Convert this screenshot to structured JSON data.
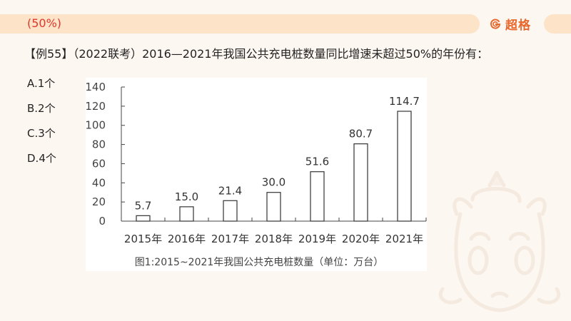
{
  "header": {
    "section_label": "(50%)",
    "brand": "超格",
    "brand_color": "#e8672c",
    "bar_color": "#fde3c8",
    "label_color": "#e0382c"
  },
  "question": {
    "text": "【例55】（2022联考）2016—2021年我国公共充电桩数量同比增速未超过50%的年份有：",
    "options": [
      {
        "label": "A.1个"
      },
      {
        "label": "B.2个"
      },
      {
        "label": "C.3个"
      },
      {
        "label": "D.4个"
      }
    ]
  },
  "chart_data": {
    "type": "bar",
    "title": "图1:2015~2021年我国公共充电桩数量（单位：万台）",
    "categories": [
      "2015年",
      "2016年",
      "2017年",
      "2018年",
      "2019年",
      "2020年",
      "2021年"
    ],
    "values": [
      5.7,
      15.0,
      21.4,
      30.0,
      51.6,
      80.7,
      114.7
    ],
    "value_labels": [
      "5.7",
      "15.0",
      "21.4",
      "30.0",
      "51.6",
      "80.7",
      "114.7"
    ],
    "xlabel": "",
    "ylabel": "",
    "ylim": [
      0,
      140
    ],
    "yticks": [
      0,
      20,
      40,
      60,
      80,
      100,
      120,
      140
    ],
    "grid": false,
    "legend": null,
    "bar_style": "white fill, dark outline"
  }
}
